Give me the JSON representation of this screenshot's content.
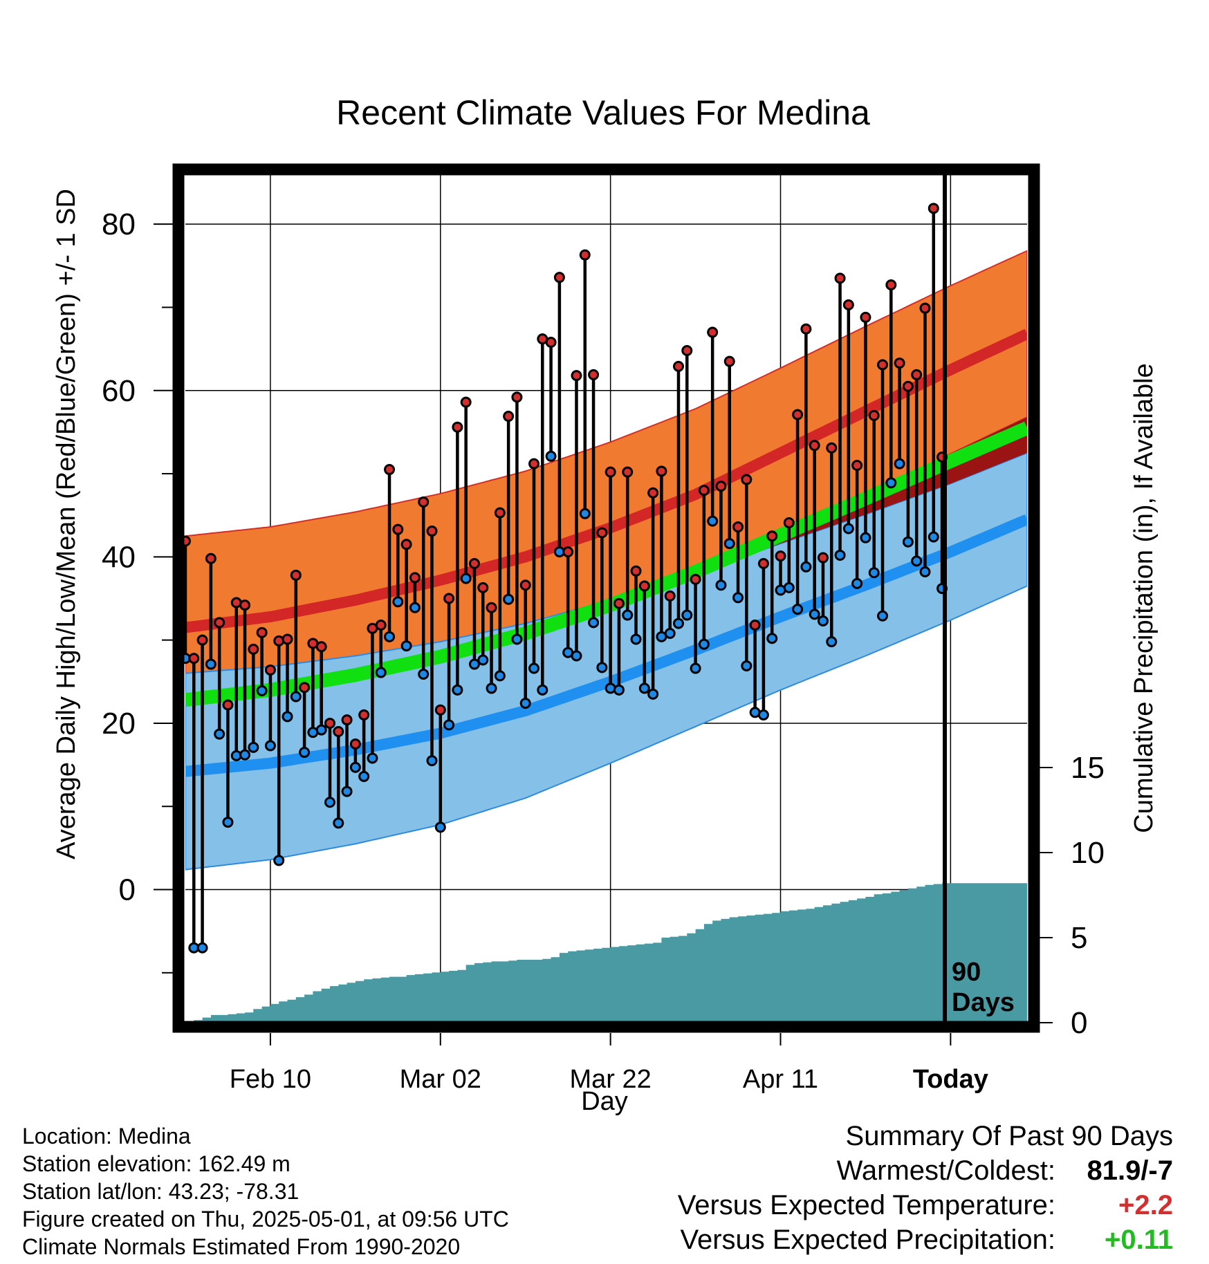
{
  "chart_data": {
    "type": "line",
    "title": "Recent Climate Values For Medina",
    "xlabel": "Day",
    "ylabel": "Average Daily High/Low/Mean (Red/Blue/Green) +/- 1 SD",
    "y2label": "Cumulative Precipitation (in), If Available",
    "x_range_days": [
      -90,
      9
    ],
    "x_tick_labels": [
      {
        "day": -80,
        "label": "Feb 10"
      },
      {
        "day": -60,
        "label": "Mar 02"
      },
      {
        "day": -40,
        "label": "Mar 22"
      },
      {
        "day": -20,
        "label": "Apr 11"
      },
      {
        "day": 0,
        "label": "Today"
      }
    ],
    "ylim": [
      -16,
      86
    ],
    "y_ticks": [
      0,
      20,
      40,
      60,
      80
    ],
    "y2lim": [
      0,
      20
    ],
    "y2_ticks": [
      0,
      5,
      10,
      15
    ],
    "grid": true,
    "today_marker_label": [
      "90",
      "Days"
    ],
    "normals_days": [
      -90,
      -80,
      -70,
      -60,
      -50,
      -40,
      -30,
      -20,
      -10,
      0,
      9
    ],
    "normals": {
      "high_mean": [
        31.5,
        32.8,
        34.8,
        37.2,
        40.0,
        43.5,
        47.5,
        52.5,
        57.5,
        62.5,
        66.8
      ],
      "high_sd": [
        11,
        10.8,
        10.6,
        10.4,
        10.3,
        10.3,
        10.3,
        10.2,
        10.2,
        10.1,
        10.0
      ],
      "low_mean": [
        14.2,
        15.2,
        16.8,
        18.8,
        21.5,
        25.0,
        28.8,
        32.8,
        36.6,
        40.6,
        44.5
      ],
      "low_sd": [
        11.8,
        11.6,
        11.3,
        11.0,
        10.5,
        9.8,
        9.2,
        8.8,
        8.5,
        8.2,
        8.0
      ],
      "mean": [
        22.8,
        24.0,
        25.8,
        28.0,
        30.8,
        34.2,
        38.2,
        42.6,
        47.0,
        51.5,
        55.5
      ]
    },
    "series": [
      {
        "name": "High",
        "color": "#d32f2f",
        "values": [
          41.9,
          27.8,
          30.0,
          39.8,
          32.1,
          22.2,
          34.5,
          34.2,
          28.9,
          30.9,
          26.4,
          29.9,
          30.1,
          37.8,
          24.3,
          29.6,
          29.2,
          20.0,
          19.0,
          20.4,
          17.5,
          21.0,
          31.4,
          31.8,
          50.5,
          43.3,
          41.5,
          37.5,
          46.6,
          43.1,
          21.6,
          35.0,
          55.6,
          58.6,
          39.2,
          36.3,
          33.9,
          45.3,
          56.9,
          59.2,
          36.6,
          51.2,
          66.2,
          65.8,
          73.6,
          40.6,
          61.8,
          76.3,
          61.9,
          42.9,
          50.2,
          34.4,
          50.2,
          38.3,
          36.5,
          47.7,
          50.3,
          35.3,
          62.9,
          64.8,
          37.3,
          48.0,
          67.0,
          48.5,
          63.5,
          43.6,
          49.3,
          31.8,
          39.2,
          42.5,
          40.1,
          44.1,
          57.1,
          67.4,
          53.4,
          39.9,
          53.1,
          73.5,
          70.3,
          51.0,
          68.8,
          57.0,
          63.1,
          72.7,
          63.3,
          60.5,
          61.9,
          69.9,
          81.9,
          52.0
        ]
      },
      {
        "name": "Low",
        "color": "#1e88e5",
        "values": [
          27.8,
          -7.0,
          -7.0,
          27.1,
          18.7,
          8.1,
          16.1,
          16.2,
          17.1,
          23.9,
          17.3,
          3.5,
          20.8,
          23.2,
          16.5,
          18.9,
          19.2,
          10.5,
          8.0,
          11.8,
          14.7,
          13.6,
          15.8,
          26.1,
          30.4,
          34.6,
          29.3,
          33.9,
          25.9,
          15.5,
          7.5,
          19.8,
          24.0,
          37.4,
          27.1,
          27.6,
          24.2,
          25.7,
          34.9,
          30.1,
          22.4,
          26.6,
          24.0,
          52.1,
          40.6,
          28.5,
          28.1,
          45.2,
          32.1,
          26.7,
          24.2,
          24.0,
          33.0,
          30.1,
          24.2,
          23.5,
          30.4,
          30.8,
          32.0,
          33.0,
          26.6,
          29.5,
          44.3,
          36.6,
          41.6,
          35.1,
          26.9,
          21.3,
          21.0,
          30.2,
          36.0,
          36.3,
          33.7,
          38.8,
          33.1,
          32.3,
          29.8,
          40.2,
          43.4,
          36.8,
          42.3,
          38.1,
          32.9,
          48.9,
          51.2,
          41.8,
          39.5,
          38.2,
          42.4,
          36.2
        ]
      },
      {
        "name": "Cumulative Precipitation",
        "color": "#4a9aa3",
        "values": [
          0.1,
          0.15,
          0.3,
          0.45,
          0.45,
          0.5,
          0.55,
          0.6,
          0.8,
          0.95,
          1.1,
          1.25,
          1.35,
          1.5,
          1.65,
          1.85,
          2.0,
          2.15,
          2.25,
          2.35,
          2.45,
          2.55,
          2.6,
          2.65,
          2.7,
          2.7,
          2.8,
          2.85,
          2.9,
          2.95,
          3.0,
          3.05,
          3.1,
          3.4,
          3.5,
          3.55,
          3.6,
          3.6,
          3.65,
          3.7,
          3.7,
          3.7,
          3.75,
          3.85,
          4.1,
          4.2,
          4.25,
          4.3,
          4.35,
          4.4,
          4.45,
          4.5,
          4.55,
          4.6,
          4.65,
          4.7,
          5.0,
          5.05,
          5.1,
          5.25,
          5.5,
          5.8,
          6.0,
          6.1,
          6.2,
          6.25,
          6.3,
          6.35,
          6.4,
          6.45,
          6.55,
          6.6,
          6.65,
          6.7,
          6.8,
          6.9,
          7.0,
          7.1,
          7.2,
          7.3,
          7.4,
          7.55,
          7.6,
          7.7,
          7.8,
          7.9,
          8.0,
          8.1,
          8.15,
          8.2
        ]
      }
    ]
  },
  "meta_lines": {
    "location": "Location: Medina",
    "elevation": "Station elevation: 162.49 m",
    "latlon": "Station lat/lon: 43.23; -78.31",
    "created": "Figure created on Thu, 2025-05-01, at 09:56 UTC",
    "normals": "Climate Normals Estimated From 1990-2020"
  },
  "summary": {
    "title": "Summary Of Past 90 Days",
    "warmest_label": "Warmest/Coldest:",
    "warmest_value": "81.9/-7",
    "temp_label": "Versus Expected Temperature:",
    "temp_value": "+2.2",
    "temp_color": "#d32f2f",
    "precip_label": "Versus Expected Precipitation:",
    "precip_value": "+0.11",
    "precip_color": "#22bb22"
  }
}
